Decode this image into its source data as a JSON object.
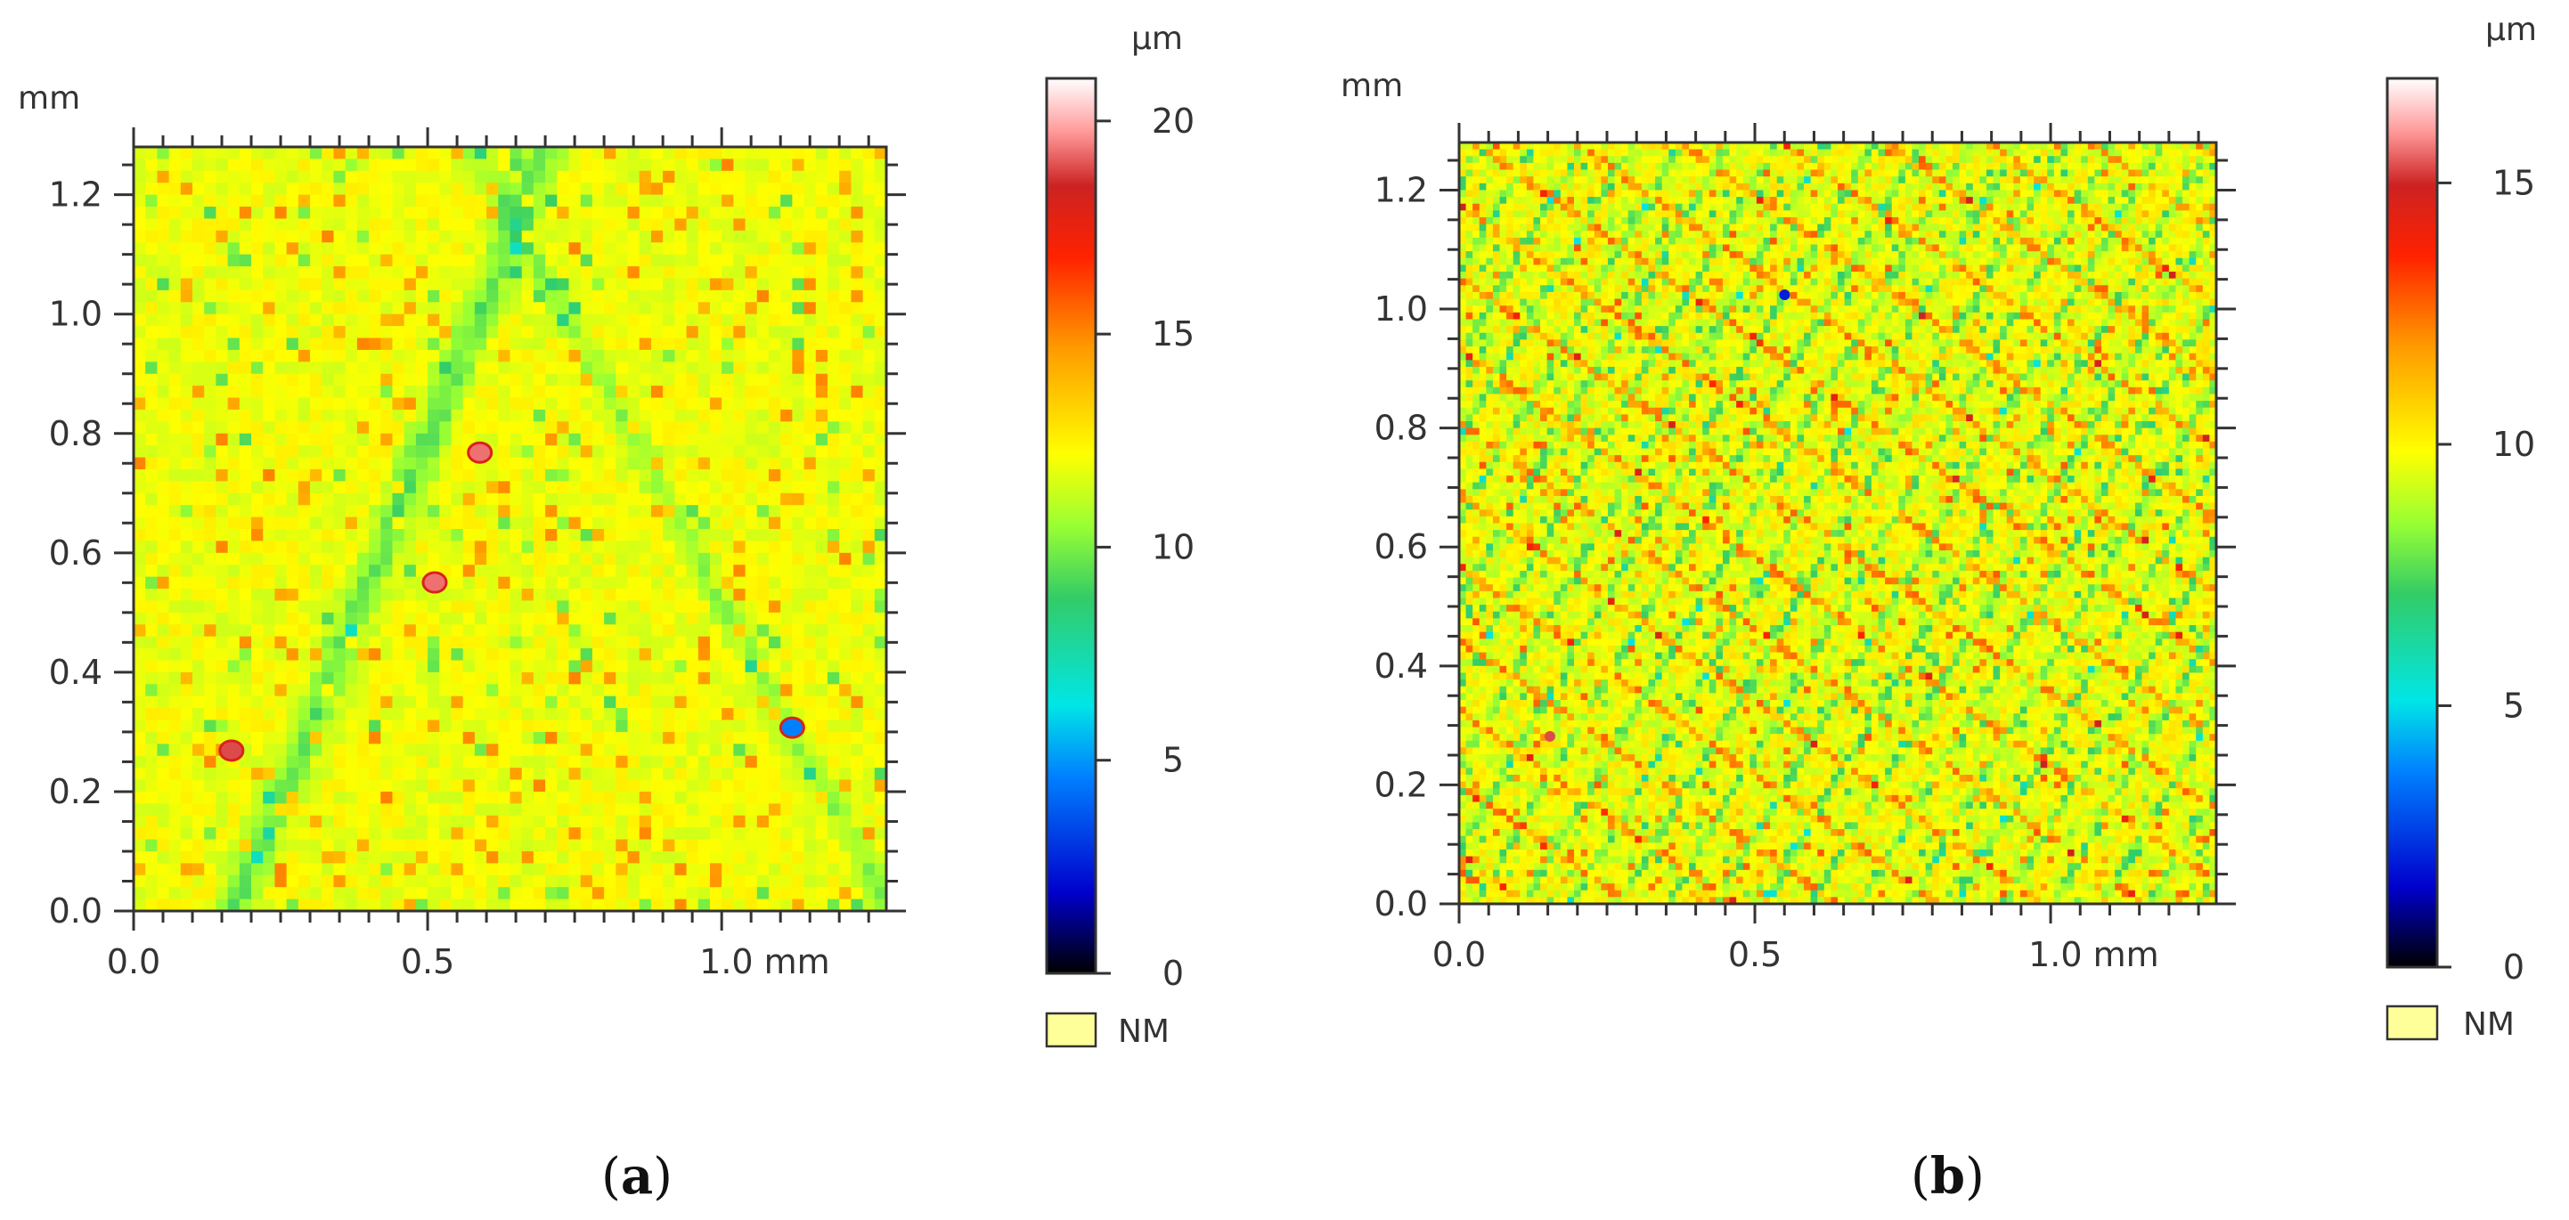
{
  "chart_data": [
    {
      "type": "heatmap",
      "caption_letter": "a",
      "x_unit": "mm",
      "y_unit": "mm",
      "xlim": [
        0,
        1.28
      ],
      "ylim": [
        0,
        1.28
      ],
      "x_ticks": [
        {
          "value": 0,
          "label": "0.0"
        },
        {
          "value": 0.5,
          "label": "0.5"
        },
        {
          "value": 1.0,
          "label": "1.0 mm"
        }
      ],
      "y_ticks": [
        {
          "value": 0,
          "label": "0.0"
        },
        {
          "value": 0.2,
          "label": "0.2"
        },
        {
          "value": 0.4,
          "label": "0.4"
        },
        {
          "value": 0.6,
          "label": "0.6"
        },
        {
          "value": 0.8,
          "label": "0.8"
        },
        {
          "value": 1.0,
          "label": "1.0"
        },
        {
          "value": 1.2,
          "label": "1.2"
        }
      ],
      "colorbar": {
        "unit": "µm",
        "range": [
          0,
          21
        ],
        "ticks": [
          {
            "value": 0,
            "label": "0"
          },
          {
            "value": 5,
            "label": "5"
          },
          {
            "value": 10,
            "label": "10"
          },
          {
            "value": 15,
            "label": "15"
          },
          {
            "value": 20,
            "label": "20"
          }
        ]
      },
      "legend_nm": {
        "label": "NM",
        "color": "#ffff99"
      },
      "texture": "coarse"
    },
    {
      "type": "heatmap",
      "caption_letter": "b",
      "x_unit": "mm",
      "y_unit": "mm",
      "xlim": [
        0,
        1.28
      ],
      "ylim": [
        0,
        1.28
      ],
      "x_ticks": [
        {
          "value": 0,
          "label": "0.0"
        },
        {
          "value": 0.5,
          "label": "0.5"
        },
        {
          "value": 1.0,
          "label": "1.0 mm"
        }
      ],
      "y_ticks": [
        {
          "value": 0,
          "label": "0.0"
        },
        {
          "value": 0.2,
          "label": "0.2"
        },
        {
          "value": 0.4,
          "label": "0.4"
        },
        {
          "value": 0.6,
          "label": "0.6"
        },
        {
          "value": 0.8,
          "label": "0.8"
        },
        {
          "value": 1.0,
          "label": "1.0"
        },
        {
          "value": 1.2,
          "label": "1.2"
        }
      ],
      "colorbar": {
        "unit": "µm",
        "range": [
          0,
          17
        ],
        "ticks": [
          {
            "value": 0,
            "label": "0"
          },
          {
            "value": 5,
            "label": "5"
          },
          {
            "value": 10,
            "label": "10"
          },
          {
            "value": 15,
            "label": "15"
          }
        ]
      },
      "legend_nm": {
        "label": "NM",
        "color": "#ffff99"
      },
      "texture": "fine"
    }
  ]
}
